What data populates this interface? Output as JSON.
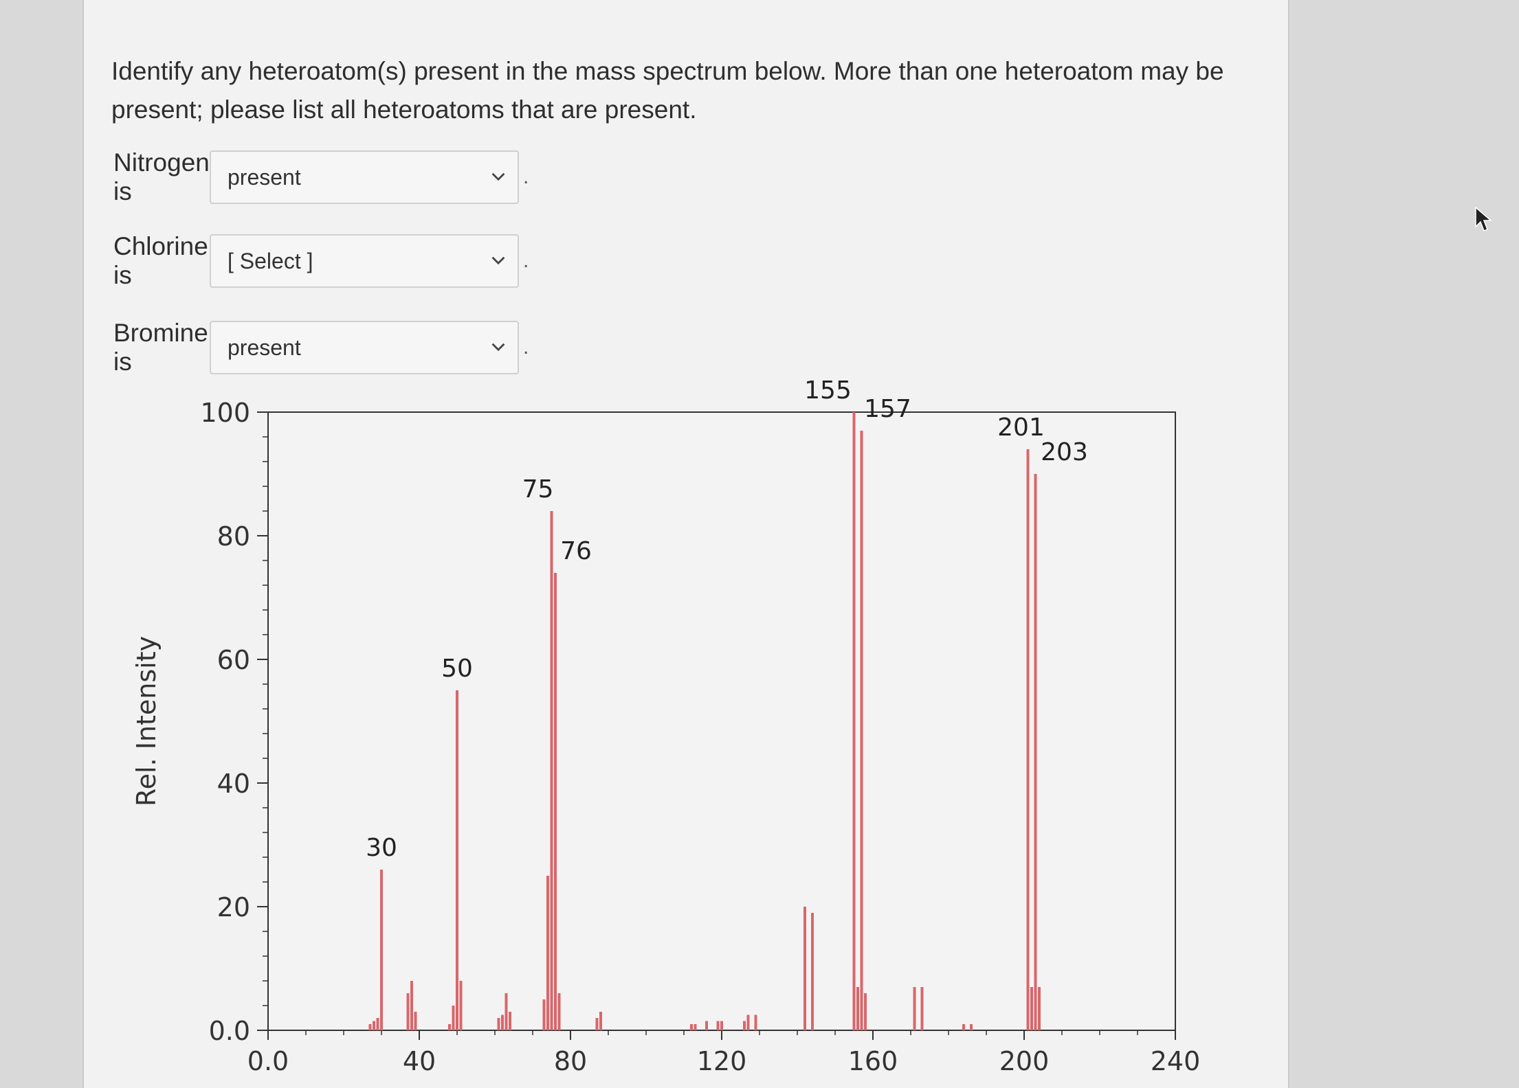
{
  "question": "Identify any heteroatom(s) present in the mass spectrum below. More than one heteroatom may be present; please list all heteroatoms that are present.",
  "rows": [
    {
      "label": "Nitrogen is",
      "value": "present"
    },
    {
      "label": "Chlorine is",
      "value": "[ Select ]"
    },
    {
      "label": "Bromine is",
      "value": "present"
    }
  ],
  "icons": {
    "chevron": "chevron-down-icon",
    "cursor": "mouse-pointer-icon"
  },
  "chart_data": {
    "type": "bar",
    "xlabel": "",
    "ylabel": "Rel. Intensity",
    "xlim": [
      0,
      240
    ],
    "ylim": [
      0,
      100
    ],
    "x_ticks": [
      0,
      40,
      80,
      120,
      160,
      200,
      240
    ],
    "x_tick_labels": [
      "0.0",
      "40",
      "80",
      "120",
      "160",
      "200",
      "240"
    ],
    "y_ticks": [
      0,
      20,
      40,
      60,
      80,
      100
    ],
    "y_tick_labels": [
      "0.0",
      "20",
      "40",
      "60",
      "80",
      "100"
    ],
    "bar_color": "#d9666b",
    "peaks": [
      {
        "mz": 27,
        "intensity": 1
      },
      {
        "mz": 28,
        "intensity": 1.5
      },
      {
        "mz": 29,
        "intensity": 2
      },
      {
        "mz": 30,
        "intensity": 26
      },
      {
        "mz": 37,
        "intensity": 6
      },
      {
        "mz": 38,
        "intensity": 8
      },
      {
        "mz": 39,
        "intensity": 3
      },
      {
        "mz": 48,
        "intensity": 1
      },
      {
        "mz": 49,
        "intensity": 4
      },
      {
        "mz": 50,
        "intensity": 55
      },
      {
        "mz": 51,
        "intensity": 8
      },
      {
        "mz": 61,
        "intensity": 2
      },
      {
        "mz": 62,
        "intensity": 2.5
      },
      {
        "mz": 63,
        "intensity": 6
      },
      {
        "mz": 64,
        "intensity": 3
      },
      {
        "mz": 73,
        "intensity": 5
      },
      {
        "mz": 74,
        "intensity": 25
      },
      {
        "mz": 75,
        "intensity": 84
      },
      {
        "mz": 76,
        "intensity": 74
      },
      {
        "mz": 77,
        "intensity": 6
      },
      {
        "mz": 87,
        "intensity": 2
      },
      {
        "mz": 88,
        "intensity": 3
      },
      {
        "mz": 112,
        "intensity": 1
      },
      {
        "mz": 113,
        "intensity": 1
      },
      {
        "mz": 116,
        "intensity": 1.5
      },
      {
        "mz": 119,
        "intensity": 1.5
      },
      {
        "mz": 120,
        "intensity": 1.5
      },
      {
        "mz": 126,
        "intensity": 1.5
      },
      {
        "mz": 127,
        "intensity": 2.5
      },
      {
        "mz": 129,
        "intensity": 2.5
      },
      {
        "mz": 142,
        "intensity": 20
      },
      {
        "mz": 144,
        "intensity": 19
      },
      {
        "mz": 155,
        "intensity": 100
      },
      {
        "mz": 156,
        "intensity": 7
      },
      {
        "mz": 157,
        "intensity": 97
      },
      {
        "mz": 158,
        "intensity": 6
      },
      {
        "mz": 171,
        "intensity": 7
      },
      {
        "mz": 173,
        "intensity": 7
      },
      {
        "mz": 184,
        "intensity": 1
      },
      {
        "mz": 186,
        "intensity": 1
      },
      {
        "mz": 201,
        "intensity": 94
      },
      {
        "mz": 202,
        "intensity": 7
      },
      {
        "mz": 203,
        "intensity": 90
      },
      {
        "mz": 204,
        "intensity": 7
      }
    ],
    "peak_labels": [
      {
        "mz": 30,
        "text": "30"
      },
      {
        "mz": 50,
        "text": "50"
      },
      {
        "mz": 75,
        "text": "75"
      },
      {
        "mz": 76,
        "text": "76"
      },
      {
        "mz": 155,
        "text": "155"
      },
      {
        "mz": 157,
        "text": "157"
      },
      {
        "mz": 201,
        "text": "201"
      },
      {
        "mz": 203,
        "text": "203"
      }
    ]
  }
}
